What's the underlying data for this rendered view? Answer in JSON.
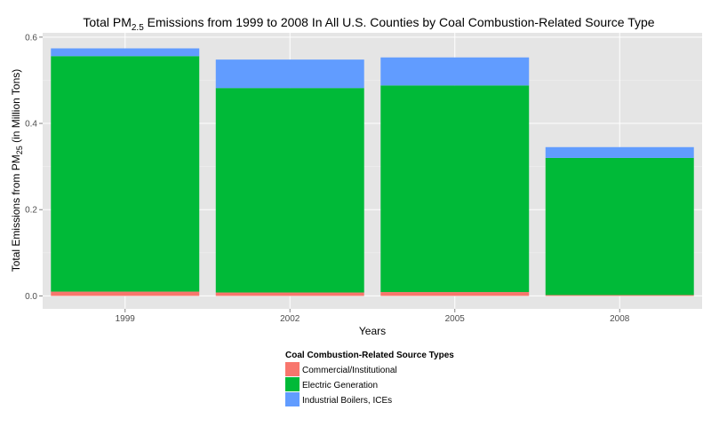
{
  "chart_data": {
    "type": "bar",
    "stacked": true,
    "title": {
      "prefix": "Total PM",
      "subscript": "2.5",
      "suffix": " Emissions from 1999 to 2008 In All U.S. Counties by Coal Combustion-Related Source Type"
    },
    "xlabel": "Years",
    "ylabel": {
      "prefix": "Total Emissions from  PM",
      "subscript": "25",
      "suffix": " (in Million Tons)"
    },
    "categories": [
      "1999",
      "2002",
      "2005",
      "2008"
    ],
    "ylim": [
      -0.03,
      0.61
    ],
    "yticks": [
      0.0,
      0.2,
      0.4,
      0.6
    ],
    "ytick_labels": [
      "0.0",
      "0.2",
      "0.4",
      "0.6"
    ],
    "grid": true,
    "legend_position": "bottom",
    "legend_title": "Coal Combustion-Related Source Types",
    "series": [
      {
        "name": "Commercial/Institutional",
        "color": "#F8766D",
        "values": [
          0.01,
          0.008,
          0.009,
          0.002
        ]
      },
      {
        "name": "Electric Generation",
        "color": "#00BA38",
        "values": [
          0.546,
          0.474,
          0.479,
          0.318
        ]
      },
      {
        "name": "Industrial Boilers, ICEs",
        "color": "#619CFF",
        "values": [
          0.018,
          0.066,
          0.065,
          0.025
        ]
      }
    ]
  }
}
